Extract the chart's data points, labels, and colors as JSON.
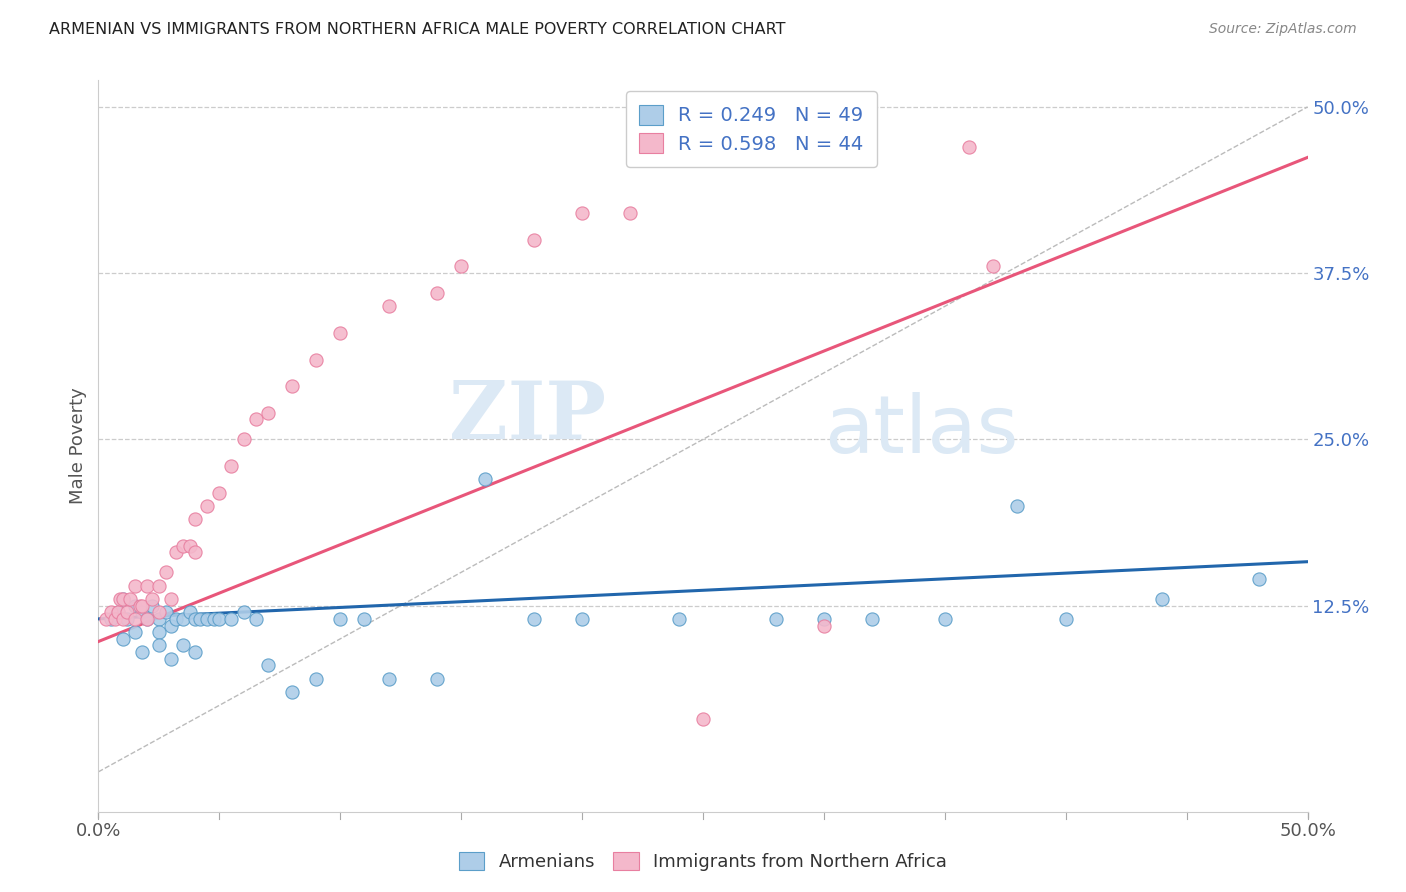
{
  "title": "ARMENIAN VS IMMIGRANTS FROM NORTHERN AFRICA MALE POVERTY CORRELATION CHART",
  "source": "Source: ZipAtlas.com",
  "ylabel": "Male Poverty",
  "xmin": 0.0,
  "xmax": 0.5,
  "ymin": -0.03,
  "ymax": 0.52,
  "ytick_values": [
    0.125,
    0.25,
    0.375,
    0.5
  ],
  "watermark_zip": "ZIP",
  "watermark_atlas": "atlas",
  "blue_line_color": "#2166ac",
  "pink_line_color": "#e8567a",
  "blue_dot_face": "#aecde8",
  "pink_dot_face": "#f4b8cb",
  "blue_dot_edge": "#5b9ec9",
  "pink_dot_edge": "#e87fa0",
  "trend_line_blue": {
    "x0": 0.0,
    "y0": 0.115,
    "x1": 0.5,
    "y1": 0.158
  },
  "trend_line_pink": {
    "x0": 0.0,
    "y0": 0.098,
    "x1": 0.5,
    "y1": 0.462
  },
  "diagonal_line": {
    "x0": 0.0,
    "y0": 0.0,
    "x1": 0.5,
    "y1": 0.5
  },
  "armenians_x": [
    0.005,
    0.008,
    0.01,
    0.01,
    0.012,
    0.015,
    0.015,
    0.018,
    0.018,
    0.02,
    0.022,
    0.025,
    0.025,
    0.025,
    0.028,
    0.03,
    0.03,
    0.032,
    0.035,
    0.035,
    0.038,
    0.04,
    0.04,
    0.042,
    0.045,
    0.048,
    0.05,
    0.055,
    0.06,
    0.065,
    0.07,
    0.08,
    0.09,
    0.1,
    0.11,
    0.12,
    0.14,
    0.16,
    0.18,
    0.2,
    0.24,
    0.28,
    0.3,
    0.32,
    0.35,
    0.38,
    0.4,
    0.44,
    0.48
  ],
  "armenians_y": [
    0.115,
    0.12,
    0.13,
    0.1,
    0.115,
    0.125,
    0.105,
    0.12,
    0.09,
    0.115,
    0.125,
    0.115,
    0.105,
    0.095,
    0.12,
    0.11,
    0.085,
    0.115,
    0.115,
    0.095,
    0.12,
    0.115,
    0.09,
    0.115,
    0.115,
    0.115,
    0.115,
    0.115,
    0.12,
    0.115,
    0.08,
    0.06,
    0.07,
    0.115,
    0.115,
    0.07,
    0.07,
    0.22,
    0.115,
    0.115,
    0.115,
    0.115,
    0.115,
    0.115,
    0.115,
    0.2,
    0.115,
    0.13,
    0.145
  ],
  "northern_africa_x": [
    0.003,
    0.005,
    0.007,
    0.008,
    0.009,
    0.01,
    0.01,
    0.012,
    0.013,
    0.015,
    0.015,
    0.017,
    0.018,
    0.02,
    0.02,
    0.022,
    0.025,
    0.025,
    0.028,
    0.03,
    0.032,
    0.035,
    0.038,
    0.04,
    0.04,
    0.045,
    0.05,
    0.055,
    0.06,
    0.065,
    0.07,
    0.08,
    0.09,
    0.1,
    0.12,
    0.14,
    0.15,
    0.18,
    0.2,
    0.22,
    0.25,
    0.3,
    0.36,
    0.37
  ],
  "northern_africa_y": [
    0.115,
    0.12,
    0.115,
    0.12,
    0.13,
    0.115,
    0.13,
    0.12,
    0.13,
    0.115,
    0.14,
    0.125,
    0.125,
    0.115,
    0.14,
    0.13,
    0.12,
    0.14,
    0.15,
    0.13,
    0.165,
    0.17,
    0.17,
    0.165,
    0.19,
    0.2,
    0.21,
    0.23,
    0.25,
    0.265,
    0.27,
    0.29,
    0.31,
    0.33,
    0.35,
    0.36,
    0.38,
    0.4,
    0.42,
    0.42,
    0.04,
    0.11,
    0.47,
    0.38
  ]
}
